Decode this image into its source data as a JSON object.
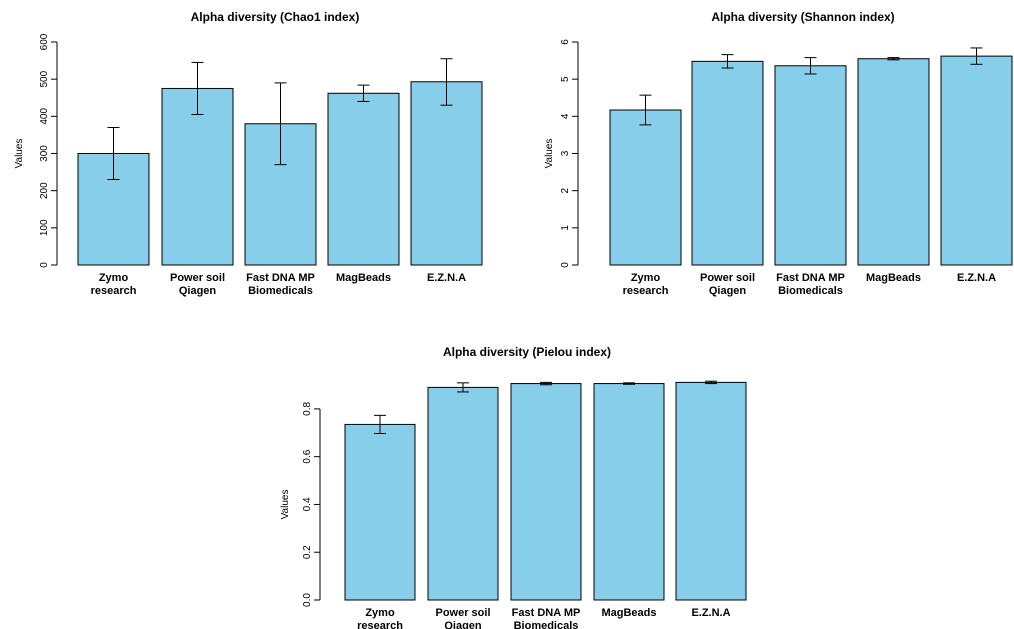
{
  "chart_data": [
    {
      "type": "bar",
      "title": "Alpha diversity (Chao1 index)",
      "xlabel": "",
      "ylabel": "Values",
      "ylim": [
        0,
        600
      ],
      "yticks": [
        0,
        100,
        200,
        300,
        400,
        500,
        600
      ],
      "categories": [
        [
          "Zymo",
          "research"
        ],
        [
          "Power soil",
          "Qiagen"
        ],
        [
          "Fast DNA MP",
          "Biomedicals"
        ],
        [
          "MagBeads"
        ],
        [
          "E.Z.N.A"
        ]
      ],
      "values": [
        300,
        475,
        380,
        462,
        493
      ],
      "error_low": [
        230,
        405,
        270,
        440,
        430
      ],
      "error_high": [
        370,
        545,
        490,
        484,
        555
      ],
      "bar_color": "#87ceeb",
      "grid": false
    },
    {
      "type": "bar",
      "title": "Alpha diversity (Shannon index)",
      "xlabel": "",
      "ylabel": "Values",
      "ylim": [
        0,
        6
      ],
      "yticks": [
        0,
        1,
        2,
        3,
        4,
        5,
        6
      ],
      "categories": [
        [
          "Zymo",
          "research"
        ],
        [
          "Power soil",
          "Qiagen"
        ],
        [
          "Fast DNA MP",
          "Biomedicals"
        ],
        [
          "MagBeads"
        ],
        [
          "E.Z.N.A"
        ]
      ],
      "values": [
        4.17,
        5.48,
        5.36,
        5.55,
        5.62
      ],
      "error_low": [
        3.77,
        5.3,
        5.14,
        5.52,
        5.4
      ],
      "error_high": [
        4.57,
        5.66,
        5.58,
        5.58,
        5.84
      ],
      "bar_color": "#87ceeb",
      "grid": false
    },
    {
      "type": "bar",
      "title": "Alpha diversity (Pielou index)",
      "xlabel": "",
      "ylabel": "Values",
      "ylim": [
        0,
        0.9
      ],
      "yticks": [
        0.0,
        0.2,
        0.4,
        0.6,
        0.8
      ],
      "categories": [
        [
          "Zymo",
          "research"
        ],
        [
          "Power soil",
          "Qiagen"
        ],
        [
          "Fast DNA MP",
          "Biomedicals"
        ],
        [
          "MagBeads"
        ],
        [
          "E.Z.N.A"
        ]
      ],
      "values": [
        0.735,
        0.89,
        0.906,
        0.906,
        0.911
      ],
      "error_low": [
        0.697,
        0.871,
        0.901,
        0.903,
        0.906
      ],
      "error_high": [
        0.773,
        0.909,
        0.911,
        0.909,
        0.916
      ],
      "bar_color": "#87ceeb",
      "grid": false
    }
  ]
}
